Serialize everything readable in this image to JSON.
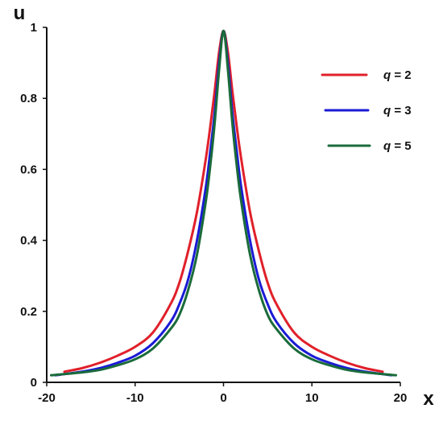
{
  "chart_data": {
    "type": "line",
    "title": "",
    "xlabel": "x",
    "ylabel": "u",
    "xlim": [
      -20,
      20
    ],
    "ylim": [
      0,
      1
    ],
    "x_ticks": [
      -20,
      -10,
      0,
      10,
      20
    ],
    "y_ticks": [
      0,
      0.2,
      0.4,
      0.6,
      0.8,
      1
    ],
    "x_tick_labels": [
      "-20",
      "-10",
      "0",
      "10",
      "20"
    ],
    "y_tick_labels": [
      "0",
      "0.2",
      "0.4",
      "0.6",
      "0.8",
      "1"
    ],
    "grid": false,
    "legend_position": "top-right",
    "series": [
      {
        "name": "q = 2",
        "legend_var": "q",
        "legend_value": "= 2",
        "color": "#e0202a",
        "x": [
          -18,
          -16,
          -14,
          -12,
          -10,
          -8,
          -6,
          -5,
          -4,
          -3,
          -2,
          -1.5,
          -1,
          -0.5,
          0,
          0.5,
          1,
          1.5,
          2,
          3,
          4,
          5,
          6,
          8,
          10,
          12,
          14,
          16,
          18
        ],
        "y": [
          0.03,
          0.04,
          0.055,
          0.075,
          0.1,
          0.14,
          0.22,
          0.28,
          0.37,
          0.48,
          0.63,
          0.72,
          0.82,
          0.93,
          0.99,
          0.93,
          0.82,
          0.72,
          0.63,
          0.48,
          0.37,
          0.28,
          0.22,
          0.14,
          0.1,
          0.075,
          0.055,
          0.04,
          0.03
        ]
      },
      {
        "name": "q = 3",
        "legend_var": "q",
        "legend_value": "= 3",
        "color": "#1a1ad6",
        "x": [
          -19,
          -16,
          -14,
          -12,
          -10,
          -8,
          -6,
          -5,
          -4,
          -3,
          -2,
          -1.5,
          -1,
          -0.5,
          0,
          0.5,
          1,
          1.5,
          2,
          3,
          4,
          5,
          6,
          8,
          10,
          12,
          14,
          16,
          19
        ],
        "y": [
          0.02,
          0.03,
          0.04,
          0.055,
          0.075,
          0.11,
          0.17,
          0.22,
          0.29,
          0.4,
          0.55,
          0.65,
          0.76,
          0.9,
          0.99,
          0.9,
          0.76,
          0.65,
          0.55,
          0.4,
          0.29,
          0.22,
          0.17,
          0.11,
          0.075,
          0.055,
          0.04,
          0.03,
          0.02
        ]
      },
      {
        "name": "q = 5",
        "legend_var": "q",
        "legend_value": "= 5",
        "color": "#1a6b3a",
        "x": [
          -19.5,
          -16,
          -14,
          -12,
          -10,
          -8,
          -6,
          -5,
          -4,
          -3,
          -2,
          -1.5,
          -1,
          -0.5,
          0,
          0.5,
          1,
          1.5,
          2,
          3,
          4,
          5,
          6,
          8,
          10,
          12,
          14,
          16,
          19.5
        ],
        "y": [
          0.02,
          0.028,
          0.035,
          0.048,
          0.065,
          0.095,
          0.15,
          0.19,
          0.26,
          0.36,
          0.51,
          0.61,
          0.73,
          0.88,
          0.99,
          0.88,
          0.73,
          0.61,
          0.51,
          0.36,
          0.26,
          0.19,
          0.15,
          0.095,
          0.065,
          0.048,
          0.035,
          0.028,
          0.02
        ]
      }
    ]
  }
}
